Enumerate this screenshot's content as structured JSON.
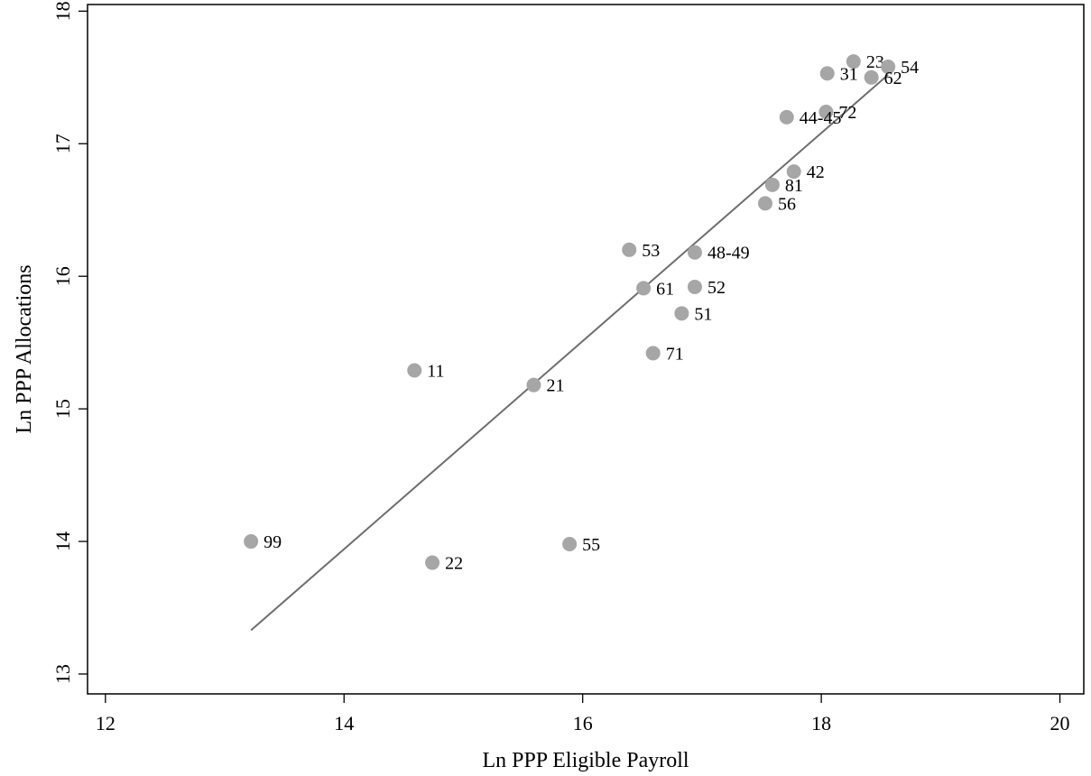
{
  "chart_data": {
    "type": "scatter",
    "title": "",
    "xlabel": "Ln PPP Eligible Payroll",
    "ylabel": "Ln PPP Allocations",
    "xlim": [
      11.85,
      20.2
    ],
    "ylim": [
      12.85,
      18.05
    ],
    "xticks": [
      12,
      14,
      16,
      18,
      20
    ],
    "yticks": [
      13,
      14,
      15,
      16,
      17,
      18
    ],
    "grid": false,
    "marker_color": "#a6a6a6",
    "line_color": "#6e6e6e",
    "points": [
      {
        "label": "23",
        "x": 18.27,
        "y": 17.62
      },
      {
        "label": "54",
        "x": 18.56,
        "y": 17.58
      },
      {
        "label": "31",
        "x": 18.05,
        "y": 17.53
      },
      {
        "label": "62",
        "x": 18.42,
        "y": 17.5
      },
      {
        "label": "72",
        "x": 18.04,
        "y": 17.24
      },
      {
        "label": "44-45",
        "x": 17.71,
        "y": 17.2
      },
      {
        "label": "42",
        "x": 17.77,
        "y": 16.79
      },
      {
        "label": "81",
        "x": 17.59,
        "y": 16.69
      },
      {
        "label": "56",
        "x": 17.53,
        "y": 16.55
      },
      {
        "label": "53",
        "x": 16.39,
        "y": 16.2
      },
      {
        "label": "48-49",
        "x": 16.94,
        "y": 16.18
      },
      {
        "label": "61",
        "x": 16.51,
        "y": 15.91
      },
      {
        "label": "52",
        "x": 16.94,
        "y": 15.92
      },
      {
        "label": "51",
        "x": 16.83,
        "y": 15.72
      },
      {
        "label": "71",
        "x": 16.59,
        "y": 15.42
      },
      {
        "label": "11",
        "x": 14.59,
        "y": 15.29
      },
      {
        "label": "21",
        "x": 15.59,
        "y": 15.18
      },
      {
        "label": "99",
        "x": 13.22,
        "y": 14.0
      },
      {
        "label": "55",
        "x": 15.89,
        "y": 13.98
      },
      {
        "label": "22",
        "x": 14.74,
        "y": 13.84
      }
    ],
    "fit_line": {
      "x": [
        13.22,
        18.56
      ],
      "y": [
        13.33,
        17.52
      ]
    }
  }
}
